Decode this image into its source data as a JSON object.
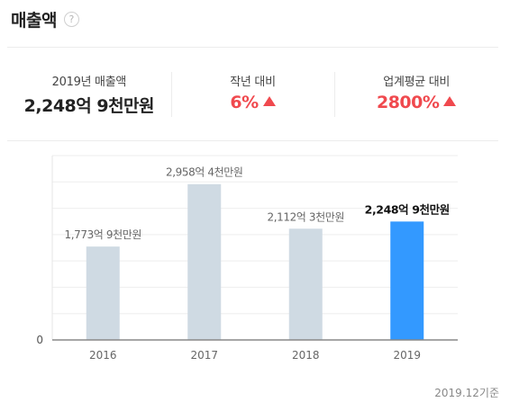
{
  "header": {
    "title": "매출액",
    "help_icon": "question-mark"
  },
  "stats": [
    {
      "label": "2019년 매출액",
      "value": "2,248억 9천만원",
      "color": "#222222",
      "arrow": false
    },
    {
      "label": "작년 대비",
      "value": "6%",
      "color": "#f0494e",
      "arrow": true
    },
    {
      "label": "업계평균 대비",
      "value": "2800%",
      "color": "#f0494e",
      "arrow": true
    }
  ],
  "chart_data": {
    "type": "bar",
    "categories": [
      "2016",
      "2017",
      "2018",
      "2019"
    ],
    "values": [
      1773,
      2958,
      2112,
      2248
    ],
    "data_labels": [
      "1,773억 9천만원",
      "2,958억 4천만원",
      "2,112억 3천만원",
      "2,248억 9천만원"
    ],
    "y_tick_labels": [
      "0"
    ],
    "ylim": [
      0,
      3500
    ],
    "grid": true,
    "highlight_index": 3,
    "bar_color": "#cfdae3",
    "highlight_color": "#3399ff"
  },
  "footnote": "2019.12기준"
}
